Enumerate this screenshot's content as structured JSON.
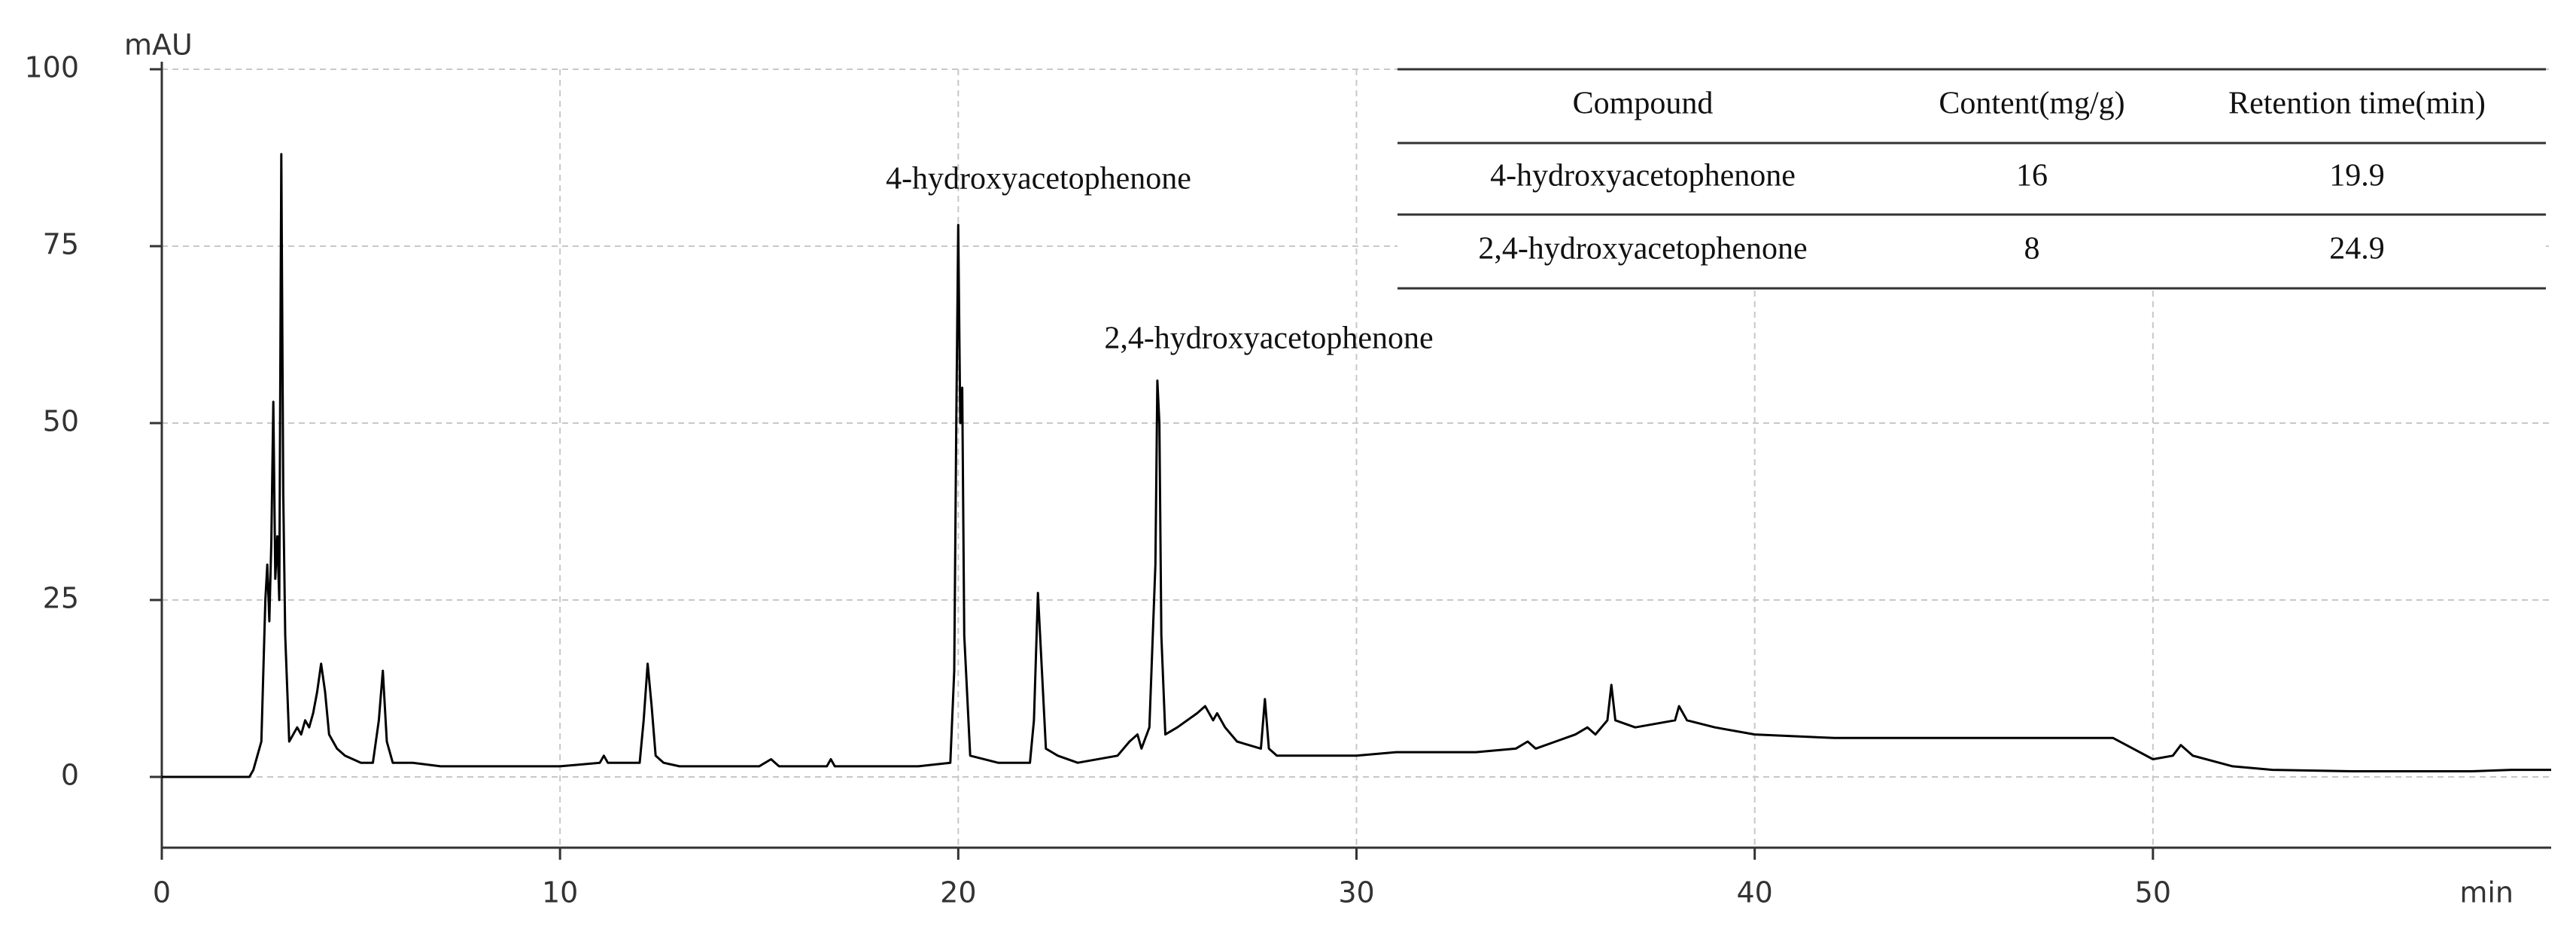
{
  "chart_data": {
    "type": "line",
    "ylabel": "mAU",
    "xlabel": "min",
    "xlim": [
      0,
      60
    ],
    "xticks": [
      0,
      10,
      20,
      30,
      40,
      50
    ],
    "ylim": [
      -10,
      100
    ],
    "yticks": [
      0,
      25,
      50,
      75,
      100
    ],
    "grid": true,
    "color": "#000000",
    "annotations": [
      "4-hydroxyacetophenone",
      "2,4-hydroxyacetophenone"
    ],
    "table": {
      "columns": [
        "Compound",
        "Content(mg/g)",
        "Retention time(min)"
      ],
      "rows": [
        [
          "4-hydroxyacetophenone",
          16,
          19.9
        ],
        [
          "2,4-hydroxyacetophenone",
          8,
          24.9
        ]
      ]
    },
    "x": [
      0,
      2.2,
      2.3,
      2.4,
      2.5,
      2.6,
      2.65,
      2.7,
      2.75,
      2.8,
      2.85,
      2.9,
      2.95,
      3.0,
      3.05,
      3.1,
      3.2,
      3.3,
      3.4,
      3.5,
      3.6,
      3.7,
      3.8,
      3.9,
      4.0,
      4.1,
      4.2,
      4.4,
      4.6,
      5.0,
      5.3,
      5.45,
      5.55,
      5.65,
      5.8,
      6.3,
      7,
      8,
      9,
      10,
      11,
      11.1,
      11.2,
      12.0,
      12.1,
      12.2,
      12.3,
      12.4,
      12.6,
      13,
      15,
      15.3,
      15.5,
      16.7,
      16.8,
      16.9,
      18,
      19.0,
      19.8,
      19.9,
      19.95,
      20.0,
      20.05,
      20.1,
      20.15,
      20.3,
      21,
      21.8,
      21.9,
      22.0,
      22.1,
      22.2,
      22.5,
      23,
      24,
      24.3,
      24.5,
      24.6,
      24.8,
      24.95,
      25.0,
      25.05,
      25.1,
      25.2,
      25.5,
      26,
      26.2,
      26.4,
      26.5,
      26.7,
      27,
      27.6,
      27.7,
      27.8,
      28,
      29,
      30,
      31,
      33,
      34,
      34.3,
      34.5,
      35,
      35.5,
      35.8,
      36,
      36.3,
      36.4,
      36.5,
      37,
      38,
      38.1,
      38.3,
      39,
      40,
      42,
      45,
      48,
      49,
      49.5,
      50,
      50.5,
      50.7,
      51,
      52,
      53,
      55,
      58,
      59,
      60
    ],
    "values": [
      0,
      0,
      1,
      3,
      5,
      25,
      30,
      22,
      33,
      53,
      28,
      34,
      25,
      88,
      40,
      20,
      5,
      6,
      7,
      6,
      8,
      7,
      9,
      12,
      16,
      12,
      6,
      4,
      3,
      2,
      2,
      8,
      15,
      5,
      2,
      2,
      1.5,
      1.5,
      1.5,
      1.5,
      2,
      3,
      2,
      2,
      8,
      16,
      10,
      3,
      2,
      1.5,
      1.5,
      2.5,
      1.5,
      1.5,
      2.5,
      1.5,
      1.5,
      1.5,
      2,
      15,
      50,
      78,
      50,
      55,
      20,
      3,
      2,
      2,
      8,
      26,
      15,
      4,
      3,
      2,
      3,
      5,
      6,
      4,
      7,
      30,
      56,
      50,
      20,
      6,
      7,
      9,
      10,
      8,
      9,
      7,
      5,
      4,
      11,
      4,
      3,
      3,
      3,
      3.5,
      3.5,
      4,
      5,
      4,
      5,
      6,
      7,
      6,
      8,
      13,
      8,
      7,
      8,
      10,
      8,
      7,
      6,
      5.5,
      5.5,
      5.5,
      5.5,
      4,
      2.5,
      3,
      4.5,
      3,
      1.5,
      1,
      0.8,
      0.8,
      1,
      1
    ]
  }
}
